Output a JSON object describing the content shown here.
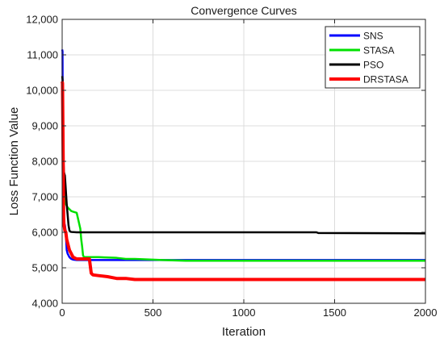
{
  "chart_data": {
    "type": "line",
    "title": "Convergence Curves",
    "xlabel": "Iteration",
    "ylabel": "Loss Function Value",
    "xlim": [
      0,
      2000
    ],
    "ylim": [
      4000,
      12000
    ],
    "xticks": [
      0,
      500,
      1000,
      1500,
      2000
    ],
    "xtick_labels": [
      "0",
      "500",
      "1000",
      "1500",
      "2000"
    ],
    "yticks": [
      4000,
      5000,
      6000,
      7000,
      8000,
      9000,
      10000,
      11000,
      12000
    ],
    "ytick_labels": [
      "4,000",
      "5,000",
      "6,000",
      "7,000",
      "8,000",
      "9,000",
      "10,000",
      "11,000",
      "12,000"
    ],
    "grid": true,
    "legend_position": "top-right",
    "series": [
      {
        "name": "SNS",
        "color": "#0000ff",
        "x": [
          0,
          2,
          3,
          5,
          8,
          10,
          12,
          15,
          20,
          25,
          30,
          40,
          50,
          60,
          80,
          2000
        ],
        "y": [
          11150,
          11100,
          9500,
          7300,
          6400,
          6250,
          6250,
          6200,
          6000,
          5500,
          5400,
          5300,
          5250,
          5230,
          5220,
          5220
        ]
      },
      {
        "name": "STASA",
        "color": "#00e000",
        "x": [
          0,
          2,
          5,
          8,
          10,
          12,
          15,
          20,
          30,
          40,
          50,
          60,
          80,
          100,
          105,
          110,
          115,
          120,
          200,
          300,
          350,
          400,
          550,
          680,
          2000
        ],
        "y": [
          9900,
          9800,
          8200,
          7600,
          7400,
          7100,
          6900,
          6800,
          6700,
          6650,
          6600,
          6580,
          6550,
          6100,
          5800,
          5600,
          5350,
          5300,
          5300,
          5280,
          5250,
          5250,
          5220,
          5200,
          5200
        ]
      },
      {
        "name": "PSO",
        "color": "#000000",
        "x": [
          0,
          2,
          5,
          8,
          10,
          12,
          15,
          20,
          25,
          30,
          35,
          40,
          45,
          50,
          80,
          1400,
          1410,
          2000
        ],
        "y": [
          10400,
          10300,
          9000,
          7900,
          7700,
          7650,
          7600,
          7200,
          6800,
          6500,
          6200,
          6050,
          6020,
          6010,
          6000,
          6000,
          5980,
          5970
        ]
      },
      {
        "name": "DRSTASA",
        "color": "#ff0000",
        "x": [
          0,
          2,
          4,
          6,
          8,
          10,
          12,
          15,
          20,
          25,
          30,
          40,
          50,
          60,
          80,
          100,
          120,
          150,
          160,
          165,
          170,
          200,
          250,
          300,
          350,
          400,
          2000
        ],
        "y": [
          10250,
          10200,
          9000,
          7800,
          6400,
          6200,
          6150,
          6050,
          6000,
          5800,
          5700,
          5500,
          5400,
          5300,
          5250,
          5250,
          5250,
          5250,
          4850,
          4820,
          4800,
          4780,
          4750,
          4700,
          4700,
          4670,
          4670
        ]
      }
    ]
  }
}
